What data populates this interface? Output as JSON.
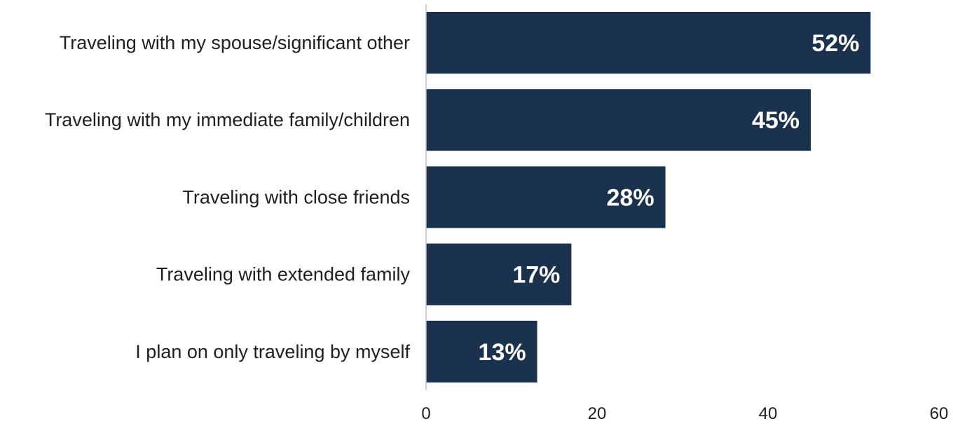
{
  "chart_data": {
    "type": "bar",
    "orientation": "horizontal",
    "categories": [
      "Traveling with my spouse/significant other",
      "Traveling with my immediate family/children",
      "Traveling with close friends",
      "Traveling with extended family",
      "I plan on only traveling by myself"
    ],
    "values": [
      52,
      45,
      28,
      17,
      13
    ],
    "data_labels": [
      "52%",
      "45%",
      "28%",
      "17%",
      "13%"
    ],
    "xlim": [
      0,
      60
    ],
    "x_ticks": [
      0,
      20,
      40,
      60
    ],
    "x_tick_labels": [
      "0",
      "20",
      "40",
      "60"
    ],
    "grid": false,
    "legend": "none",
    "colors": {
      "bar": "#1b324e",
      "axis_line": "#bfbfbf",
      "label_text": "#ffffff",
      "category_text": "#1f1f1f"
    }
  }
}
